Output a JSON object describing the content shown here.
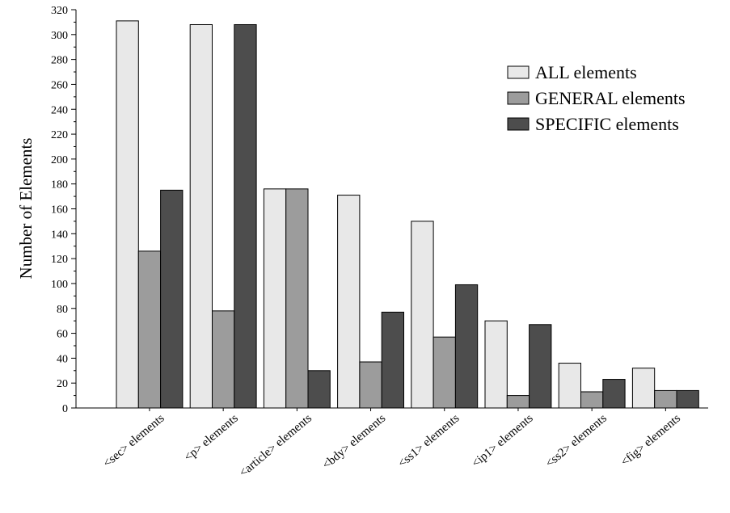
{
  "chart_data": {
    "type": "bar",
    "title": "",
    "xlabel": "",
    "ylabel": "Number of Elements",
    "ylim": [
      0,
      320
    ],
    "ytick_step": 20,
    "grid": false,
    "legend_position": "top-right",
    "categories": [
      "<sec> elements",
      "<p> elements",
      "<article> elements",
      "<bdy> elements",
      "<ss1> elements",
      "<ip1> elements",
      "<ss2> elements",
      "<fig> elements"
    ],
    "series": [
      {
        "name": "ALL elements",
        "color": "#e8e8e8",
        "values": [
          311,
          308,
          176,
          171,
          150,
          70,
          36,
          32
        ]
      },
      {
        "name": "GENERAL elements",
        "color": "#9c9c9c",
        "values": [
          126,
          78,
          176,
          37,
          57,
          10,
          13,
          14
        ]
      },
      {
        "name": "SPECIFIC elements",
        "color": "#4d4d4d",
        "values": [
          175,
          308,
          30,
          77,
          99,
          67,
          23,
          14
        ]
      }
    ]
  }
}
